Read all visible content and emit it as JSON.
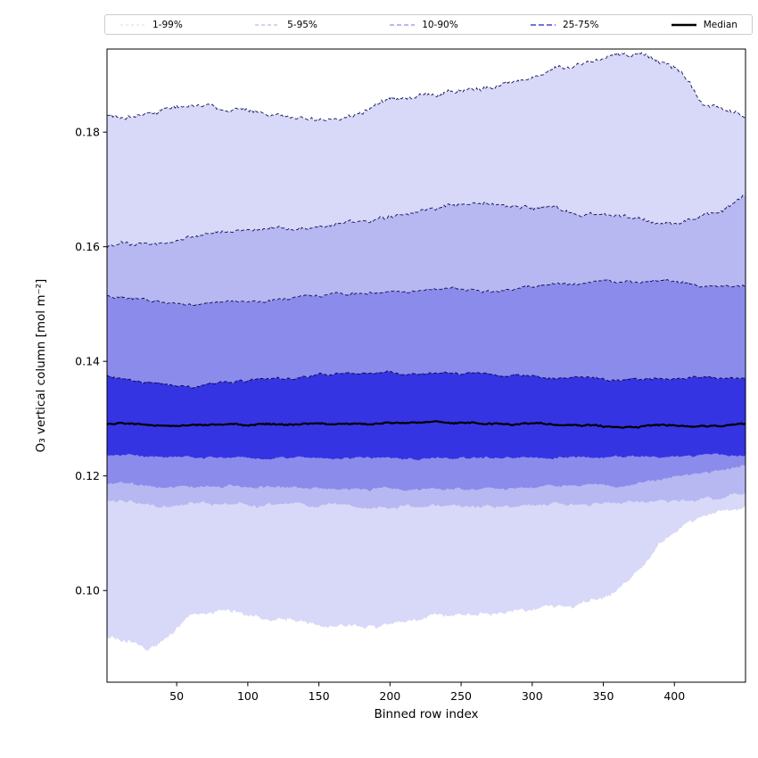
{
  "legend": {
    "items": [
      {
        "label": "1-99%",
        "color": "#e2e2f2",
        "dash": "3 3",
        "width": 1.2
      },
      {
        "label": "5-95%",
        "color": "#b9b9f2",
        "dash": "4 3",
        "width": 1.2
      },
      {
        "label": "10-90%",
        "color": "#8f8fee",
        "dash": "5 3",
        "width": 1.2
      },
      {
        "label": "25-75%",
        "color": "#4343dd",
        "dash": "6 3",
        "width": 1.5
      },
      {
        "label": "Median",
        "color": "#000000",
        "dash": "",
        "width": 2.6
      }
    ]
  },
  "chart_data": {
    "type": "area",
    "title": "",
    "xlabel": "Binned row index",
    "ylabel": "O₃ vertical column [mol m⁻²]",
    "xlim": [
      1,
      450
    ],
    "ylim": [
      0.084,
      0.1945
    ],
    "xticks": [
      50,
      100,
      150,
      200,
      250,
      300,
      350,
      400
    ],
    "yticks": [
      0.1,
      0.12,
      0.14,
      0.16,
      0.18
    ],
    "grid": false,
    "legend_position": "top",
    "bands": [
      {
        "label": "1-99%",
        "fill": "#d8d8f8",
        "edge": "#15155e",
        "noise": 0.0005,
        "upper": [
          [
            1,
            0.183
          ],
          [
            25,
            0.1832
          ],
          [
            60,
            0.1849
          ],
          [
            90,
            0.184
          ],
          [
            120,
            0.183
          ],
          [
            150,
            0.182
          ],
          [
            175,
            0.1832
          ],
          [
            200,
            0.1858
          ],
          [
            230,
            0.1868
          ],
          [
            260,
            0.1878
          ],
          [
            290,
            0.1888
          ],
          [
            310,
            0.1905
          ],
          [
            330,
            0.1915
          ],
          [
            345,
            0.193
          ],
          [
            365,
            0.1935
          ],
          [
            385,
            0.1925
          ],
          [
            400,
            0.1915
          ],
          [
            410,
            0.1885
          ],
          [
            420,
            0.1848
          ],
          [
            435,
            0.1838
          ],
          [
            450,
            0.1832
          ]
        ],
        "lower": [
          [
            1,
            0.092
          ],
          [
            18,
            0.0908
          ],
          [
            30,
            0.0895
          ],
          [
            45,
            0.0922
          ],
          [
            60,
            0.0952
          ],
          [
            80,
            0.0963
          ],
          [
            100,
            0.0958
          ],
          [
            130,
            0.095
          ],
          [
            160,
            0.094
          ],
          [
            190,
            0.0936
          ],
          [
            210,
            0.0942
          ],
          [
            230,
            0.0955
          ],
          [
            250,
            0.0958
          ],
          [
            270,
            0.0962
          ],
          [
            290,
            0.0968
          ],
          [
            310,
            0.0972
          ],
          [
            330,
            0.0978
          ],
          [
            350,
            0.0988
          ],
          [
            362,
            0.1005
          ],
          [
            375,
            0.104
          ],
          [
            390,
            0.108
          ],
          [
            405,
            0.1108
          ],
          [
            420,
            0.1128
          ],
          [
            435,
            0.1142
          ],
          [
            450,
            0.115
          ]
        ]
      },
      {
        "label": "5-95%",
        "fill": "#b7b7f2",
        "edge": "#13135a",
        "noise": 0.0004,
        "upper": [
          [
            1,
            0.1601
          ],
          [
            30,
            0.1606
          ],
          [
            60,
            0.1618
          ],
          [
            90,
            0.1626
          ],
          [
            120,
            0.163
          ],
          [
            150,
            0.1632
          ],
          [
            180,
            0.1645
          ],
          [
            210,
            0.1658
          ],
          [
            240,
            0.167
          ],
          [
            260,
            0.1678
          ],
          [
            280,
            0.1672
          ],
          [
            300,
            0.1668
          ],
          [
            320,
            0.1662
          ],
          [
            340,
            0.166
          ],
          [
            360,
            0.1652
          ],
          [
            375,
            0.1648
          ],
          [
            390,
            0.164
          ],
          [
            405,
            0.1642
          ],
          [
            420,
            0.1652
          ],
          [
            435,
            0.1668
          ],
          [
            450,
            0.169
          ]
        ],
        "lower": [
          [
            1,
            0.1155
          ],
          [
            60,
            0.1151
          ],
          [
            120,
            0.1149
          ],
          [
            180,
            0.1147
          ],
          [
            240,
            0.1146
          ],
          [
            300,
            0.1149
          ],
          [
            350,
            0.1152
          ],
          [
            400,
            0.1158
          ],
          [
            430,
            0.1163
          ],
          [
            450,
            0.1168
          ]
        ]
      },
      {
        "label": "10-90%",
        "fill": "#8b8bec",
        "edge": "#101050",
        "noise": 0.0003,
        "upper": [
          [
            1,
            0.1514
          ],
          [
            30,
            0.1506
          ],
          [
            60,
            0.15
          ],
          [
            90,
            0.1504
          ],
          [
            120,
            0.1508
          ],
          [
            150,
            0.1514
          ],
          [
            180,
            0.1518
          ],
          [
            210,
            0.1524
          ],
          [
            240,
            0.1528
          ],
          [
            270,
            0.1524
          ],
          [
            300,
            0.153
          ],
          [
            330,
            0.1534
          ],
          [
            350,
            0.154
          ],
          [
            370,
            0.1536
          ],
          [
            390,
            0.154
          ],
          [
            410,
            0.1536
          ],
          [
            430,
            0.153
          ],
          [
            450,
            0.1534
          ]
        ],
        "lower": [
          [
            1,
            0.1186
          ],
          [
            60,
            0.1181
          ],
          [
            120,
            0.118
          ],
          [
            180,
            0.1178
          ],
          [
            240,
            0.1178
          ],
          [
            300,
            0.1181
          ],
          [
            360,
            0.1186
          ],
          [
            400,
            0.1198
          ],
          [
            430,
            0.1208
          ],
          [
            450,
            0.1218
          ]
        ]
      },
      {
        "label": "25-75%",
        "fill": "#3434e2",
        "edge": "#08083c",
        "noise": 0.00025,
        "upper": [
          [
            1,
            0.1376
          ],
          [
            30,
            0.1362
          ],
          [
            60,
            0.1356
          ],
          [
            90,
            0.1364
          ],
          [
            120,
            0.137
          ],
          [
            150,
            0.1376
          ],
          [
            180,
            0.138
          ],
          [
            210,
            0.1379
          ],
          [
            240,
            0.1381
          ],
          [
            270,
            0.1379
          ],
          [
            300,
            0.1375
          ],
          [
            330,
            0.1371
          ],
          [
            360,
            0.1368
          ],
          [
            390,
            0.137
          ],
          [
            420,
            0.1372
          ],
          [
            450,
            0.137
          ]
        ],
        "lower": [
          [
            1,
            0.1236
          ],
          [
            60,
            0.1232
          ],
          [
            120,
            0.1233
          ],
          [
            180,
            0.1231
          ],
          [
            240,
            0.123
          ],
          [
            300,
            0.1232
          ],
          [
            360,
            0.1233
          ],
          [
            420,
            0.1235
          ],
          [
            450,
            0.1236
          ]
        ]
      }
    ],
    "median": {
      "label": "Median",
      "color": "#000000",
      "noise": 0.00016,
      "points": [
        [
          1,
          0.1291
        ],
        [
          60,
          0.1288
        ],
        [
          120,
          0.129
        ],
        [
          180,
          0.1292
        ],
        [
          240,
          0.1294
        ],
        [
          300,
          0.129
        ],
        [
          360,
          0.1286
        ],
        [
          420,
          0.1288
        ],
        [
          450,
          0.129
        ]
      ]
    }
  }
}
